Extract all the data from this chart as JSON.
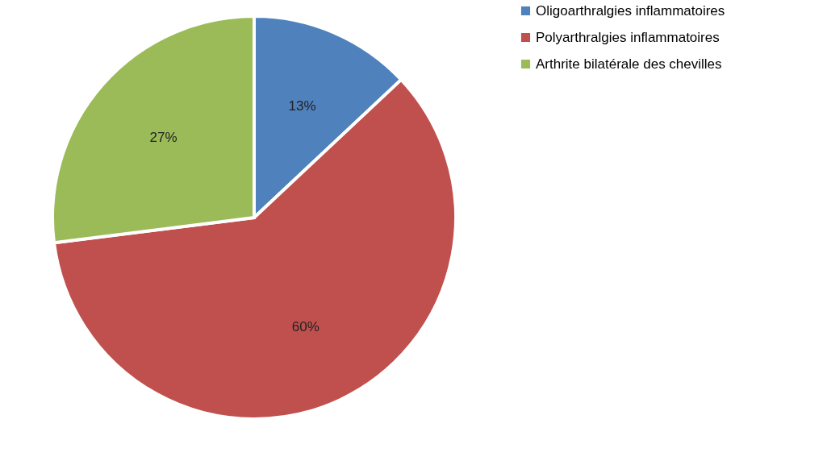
{
  "chart_data": {
    "type": "pie",
    "categories": [
      "Oligoarthralgies inflammatoires",
      "Polyarthralgies inflammatoires",
      "Arthrite bilatérale des chevilles"
    ],
    "values": [
      13,
      60,
      27
    ],
    "colors": [
      "#4f81bd",
      "#c0504d",
      "#9bbb59"
    ],
    "value_labels": [
      "13%",
      "60%",
      "27%"
    ],
    "legend": "right"
  }
}
